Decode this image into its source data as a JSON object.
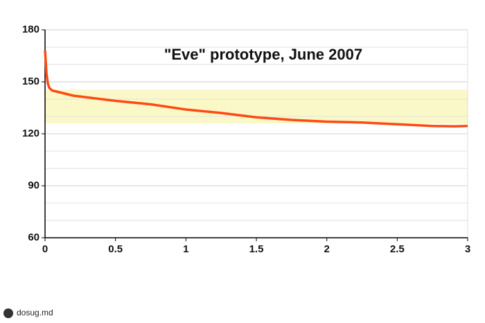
{
  "chart_data": {
    "type": "line",
    "title": "\"Eve\" prototype, June 2007",
    "x": [
      0,
      0.005,
      0.01,
      0.02,
      0.03,
      0.05,
      0.1,
      0.2,
      0.3,
      0.4,
      0.5,
      0.75,
      1.0,
      1.25,
      1.5,
      1.75,
      2.0,
      2.25,
      2.5,
      2.75,
      2.9,
      3.0
    ],
    "series": [
      {
        "name": "Eve",
        "color": "#ff4a12",
        "values": [
          168,
          162,
          155,
          149,
          146.5,
          145,
          144,
          142,
          141,
          140,
          139,
          137,
          134,
          132,
          129.5,
          128,
          127,
          126.5,
          125.5,
          124.5,
          124.3,
          124.5
        ]
      }
    ],
    "xlim": [
      0,
      3
    ],
    "xticks": [
      0,
      0.5,
      1,
      1.5,
      2,
      2.5,
      3
    ],
    "ylim": [
      60,
      180
    ],
    "yticks": [
      60,
      90,
      120,
      150,
      180
    ],
    "ygrid": [
      70,
      80,
      100,
      110,
      130,
      140,
      160,
      170
    ],
    "band": [
      126,
      145.5
    ],
    "band_color": "#fbf8c8",
    "grid": true,
    "watermark": "dosug.md"
  }
}
